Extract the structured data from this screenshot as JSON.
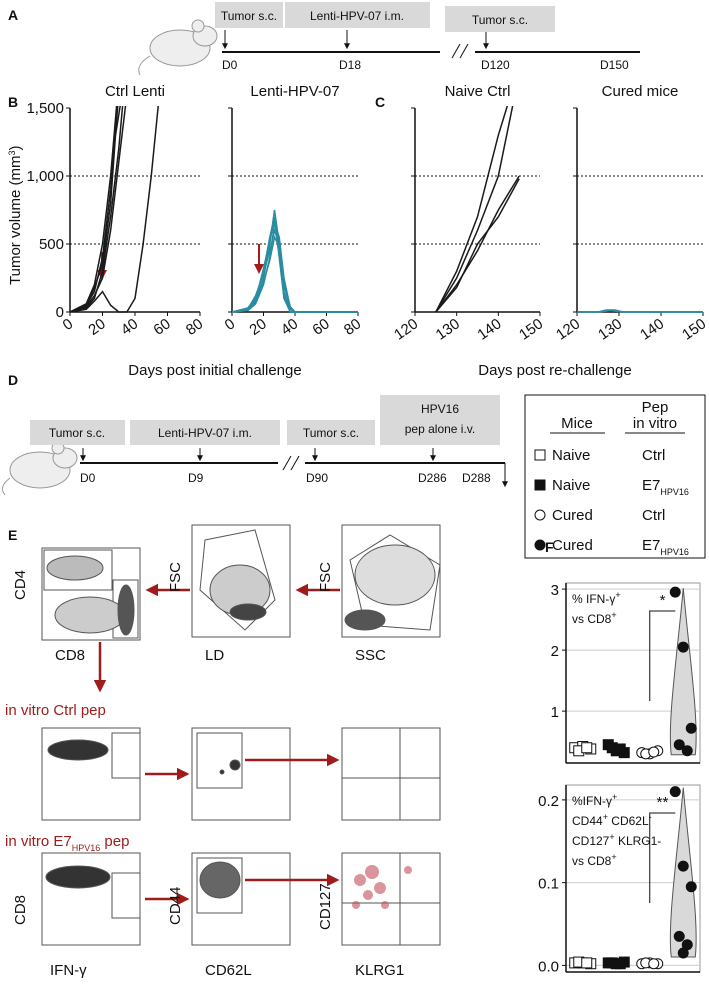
{
  "figure": {
    "panel_labels": [
      "A",
      "B",
      "C",
      "D",
      "E",
      "F"
    ],
    "timeline_a": {
      "events": [
        "Tumor s.c.",
        "Lenti-HPV-07 i.m.",
        "Tumor s.c."
      ],
      "days": [
        "D0",
        "D18",
        "D120",
        "D150"
      ]
    },
    "timeline_d": {
      "events": [
        "Tumor s.c.",
        "Lenti-HPV-07 i.m.",
        "Tumor s.c.",
        "HPV16",
        "pep alone i.v."
      ],
      "days": [
        "D0",
        "D9",
        "D90",
        "D286",
        "D288"
      ]
    },
    "legend_d": {
      "headers": [
        "Mice",
        "Pep",
        "in vitro"
      ],
      "rows": [
        [
          "Naive",
          "Ctrl"
        ],
        [
          "Naive",
          "E7",
          "HPV16"
        ],
        [
          "Cured",
          "Ctrl"
        ],
        [
          "Cured",
          "E7",
          "HPV16"
        ]
      ]
    },
    "panel_e": {
      "axis_labels": [
        "CD4",
        "CD8",
        "FSC",
        "LD",
        "FSC",
        "SSC",
        "CD8",
        "IFN-γ",
        "CD44",
        "CD62L",
        "CD127",
        "KLRG1"
      ],
      "row_labels": [
        [
          "in vitro Ctrl pep"
        ],
        [
          "in vitro E7",
          "HPV16",
          " pep"
        ]
      ]
    }
  },
  "chart_data": [
    {
      "type": "line",
      "title": "Ctrl Lenti",
      "ylabel": [
        "Tumor volume (mm",
        "3",
        ")"
      ],
      "xlabel": "Days post initial challenge",
      "xlim": [
        0,
        80
      ],
      "xticks": [
        0,
        20,
        40,
        60,
        80
      ],
      "ylim": [
        0,
        1500
      ],
      "yticks": [
        0,
        500,
        {
          "value": 1000,
          "label": "1,000"
        },
        {
          "value": 1500,
          "label": "1,500"
        }
      ],
      "show_ytick_labels": true,
      "hlines": [
        500,
        1000
      ],
      "color": "#1a1a1a",
      "series": [
        {
          "x": [
            0,
            10,
            15,
            20,
            25,
            30
          ],
          "values": [
            0,
            50,
            150,
            400,
            900,
            1600
          ]
        },
        {
          "x": [
            0,
            10,
            15,
            20,
            25,
            30,
            33
          ],
          "values": [
            0,
            30,
            100,
            300,
            700,
            1200,
            1600
          ]
        },
        {
          "x": [
            0,
            10,
            15,
            20,
            25,
            30,
            35
          ],
          "values": [
            0,
            40,
            120,
            250,
            600,
            1100,
            1600
          ]
        },
        {
          "x": [
            0,
            10,
            15,
            20,
            25,
            30,
            35,
            40,
            45,
            50,
            55
          ],
          "values": [
            0,
            20,
            80,
            150,
            50,
            0,
            0,
            100,
            500,
            1000,
            1600
          ]
        },
        {
          "x": [
            0,
            10,
            15,
            20,
            25,
            30
          ],
          "values": [
            0,
            60,
            200,
            500,
            1000,
            1700
          ]
        },
        {
          "x": [
            0,
            10,
            15,
            20,
            25,
            28,
            32
          ],
          "values": [
            0,
            40,
            180,
            350,
            800,
            1300,
            1600
          ]
        }
      ]
    },
    {
      "type": "line",
      "title": "Lenti-HPV-07",
      "xlim": [
        0,
        80
      ],
      "xticks": [
        0,
        20,
        40,
        60,
        80
      ],
      "ylim": [
        0,
        1500
      ],
      "yticks": [
        0,
        500,
        1000,
        1500
      ],
      "show_ytick_labels": false,
      "hlines": [
        500,
        1000
      ],
      "color": "#2a8ca0",
      "series": [
        {
          "x": [
            0,
            10,
            15,
            20,
            24,
            27,
            30,
            33,
            37,
            40,
            80
          ],
          "values": [
            0,
            20,
            80,
            250,
            500,
            750,
            500,
            150,
            0,
            0,
            0
          ]
        },
        {
          "x": [
            0,
            10,
            15,
            20,
            24,
            27,
            30,
            33,
            37,
            40,
            80
          ],
          "values": [
            0,
            30,
            100,
            300,
            550,
            700,
            450,
            120,
            0,
            0,
            0
          ]
        },
        {
          "x": [
            0,
            10,
            15,
            20,
            24,
            27,
            30,
            33,
            37,
            40,
            80
          ],
          "values": [
            0,
            20,
            120,
            280,
            450,
            600,
            500,
            200,
            20,
            0,
            0
          ]
        },
        {
          "x": [
            0,
            10,
            15,
            20,
            24,
            27,
            30,
            33,
            37,
            40,
            80
          ],
          "values": [
            0,
            10,
            60,
            200,
            400,
            650,
            550,
            250,
            30,
            0,
            0
          ]
        },
        {
          "x": [
            0,
            10,
            15,
            20,
            24,
            27,
            30,
            33,
            37,
            40,
            80
          ],
          "values": [
            0,
            25,
            90,
            320,
            520,
            680,
            400,
            100,
            0,
            0,
            0
          ]
        },
        {
          "x": [
            0,
            10,
            15,
            20,
            24,
            27,
            30,
            33,
            37,
            40,
            80
          ],
          "values": [
            0,
            15,
            70,
            220,
            380,
            550,
            480,
            220,
            40,
            0,
            0
          ]
        }
      ]
    },
    {
      "type": "line",
      "title": "Naive Ctrl",
      "xlabel": "Days post re-challenge",
      "xlim": [
        120,
        150
      ],
      "xticks": [
        120,
        130,
        140,
        150
      ],
      "ylim": [
        0,
        1500
      ],
      "yticks": [
        0,
        500,
        1000,
        1500
      ],
      "show_ytick_labels": false,
      "hlines": [
        500,
        1000
      ],
      "color": "#1a1a1a",
      "series": [
        {
          "x": [
            125,
            130,
            135,
            140,
            143
          ],
          "values": [
            0,
            300,
            700,
            1300,
            1600
          ]
        },
        {
          "x": [
            125,
            130,
            135,
            140,
            144
          ],
          "values": [
            0,
            250,
            600,
            1000,
            1600
          ]
        },
        {
          "x": [
            125,
            130,
            135,
            140,
            145
          ],
          "values": [
            0,
            200,
            450,
            750,
            1000
          ]
        },
        {
          "x": [
            125,
            130,
            135,
            140,
            145
          ],
          "values": [
            0,
            180,
            500,
            700,
            980
          ]
        }
      ]
    },
    {
      "type": "line",
      "title": "Cured mice",
      "xlim": [
        120,
        150
      ],
      "xticks": [
        120,
        130,
        140,
        150
      ],
      "ylim": [
        0,
        1500
      ],
      "yticks": [
        0,
        500,
        1000,
        1500
      ],
      "show_ytick_labels": false,
      "hlines": [
        500,
        1000
      ],
      "color": "#2a8ca0",
      "series": [
        {
          "x": [
            120,
            125,
            127,
            129,
            131,
            150
          ],
          "values": [
            0,
            0,
            15,
            15,
            0,
            0
          ]
        },
        {
          "x": [
            120,
            125,
            128,
            131,
            150
          ],
          "values": [
            0,
            0,
            10,
            0,
            0
          ]
        }
      ]
    },
    {
      "type": "strip",
      "ylabel": [
        "% IFN-γ",
        "+",
        "vs CD8",
        "+"
      ],
      "annotation": "*",
      "ylim": [
        0.15,
        3.1
      ],
      "yticks": [
        1,
        2,
        3
      ],
      "grid": true,
      "series": [
        {
          "marker": "square-open",
          "color": "#111",
          "values": [
            0.4,
            0.42,
            0.38,
            0.35,
            0.4
          ]
        },
        {
          "marker": "square",
          "color": "#111",
          "values": [
            0.45,
            0.35,
            0.32,
            0.4,
            0.38
          ]
        },
        {
          "marker": "circle-open",
          "color": "#111",
          "values": [
            0.32,
            0.3,
            0.35,
            0.3,
            0.33
          ]
        },
        {
          "marker": "circle",
          "color": "#111",
          "values": [
            2.95,
            2.05,
            0.72,
            0.45,
            0.35
          ],
          "violin": true
        }
      ]
    },
    {
      "type": "strip",
      "ylabel": [
        "%IFN-γ",
        "+",
        "CD44",
        "+",
        " CD62L",
        "-",
        "CD127",
        "+",
        " KLRG1-",
        "vs CD8",
        "+"
      ],
      "annotation": "**",
      "ylim": [
        -0.008,
        0.218
      ],
      "yticks": [
        {
          "value": 0,
          "label": "0.0"
        },
        0.1,
        0.2
      ],
      "grid": true,
      "series": [
        {
          "marker": "square-open",
          "color": "#111",
          "values": [
            0.003,
            0.003,
            0.002,
            0.004,
            0.003
          ]
        },
        {
          "marker": "square",
          "color": "#111",
          "values": [
            0.003,
            0.002,
            0.004,
            0.003,
            0.002
          ]
        },
        {
          "marker": "circle-open",
          "color": "#111",
          "values": [
            0.002,
            0.003,
            0.002,
            0.003,
            0.002
          ]
        },
        {
          "marker": "circle",
          "color": "#111",
          "values": [
            0.21,
            0.12,
            0.095,
            0.035,
            0.025,
            0.015
          ],
          "violin": true
        }
      ]
    }
  ]
}
